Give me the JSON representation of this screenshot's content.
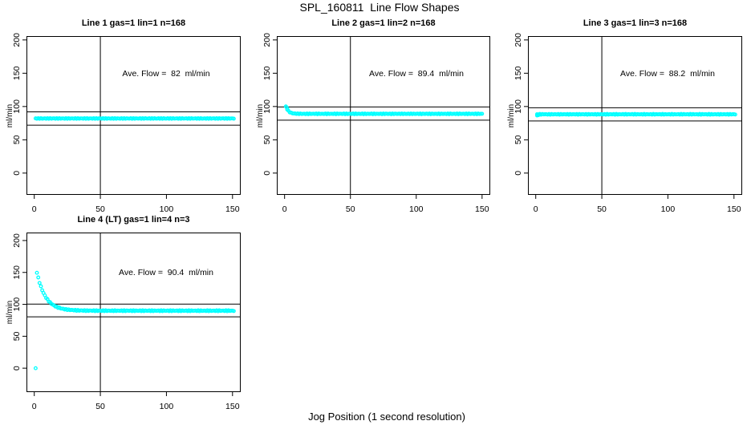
{
  "figure": {
    "title": "SPL_160811  Line Flow Shapes",
    "x_axis_label": "Jog Position (1 second resolution)",
    "y_axis_label": "ml/min",
    "background_color": "#ffffff",
    "axis_color": "#000000",
    "point_color": "#00ffff"
  },
  "chart_data": {
    "type": "scatter",
    "title": "SPL_160811  Line Flow Shapes",
    "xlabel": "Jog Position (1 second resolution)",
    "ylabel": "ml/min",
    "grid": false,
    "legend": null,
    "panels": [
      {
        "title": "Line 1 gas=1 lin=1 n=168",
        "line": 1,
        "gas": 1,
        "lin": 1,
        "n": 168,
        "ave_flow_ml_min": 82,
        "ave_flow_text": "Ave. Flow =  82  ml/min",
        "ave_label_xy": [
          100,
          150
        ],
        "xlim": [
          -5.9,
          156.2
        ],
        "ylim": [
          -32.7,
          205.8
        ],
        "xticks": [
          0,
          50,
          100,
          150
        ],
        "yticks": [
          0,
          50,
          100,
          150,
          200
        ],
        "vline_x": 50,
        "hlines_y": [
          92,
          72
        ],
        "series": {
          "shape": "flat",
          "x_start": 1,
          "x_end": 151,
          "x_step": 1,
          "flat_y": 82,
          "decay_amp": 0,
          "decay_tau": 1,
          "jitter": 0.5,
          "extra_points": []
        }
      },
      {
        "title": "Line 2 gas=1 lin=2 n=168",
        "line": 2,
        "gas": 1,
        "lin": 2,
        "n": 168,
        "ave_flow_ml_min": 89.4,
        "ave_flow_text": "Ave. Flow =  89.4  ml/min",
        "ave_label_xy": [
          100,
          150
        ],
        "xlim": [
          -5.9,
          156.2
        ],
        "ylim": [
          -32.7,
          205.8
        ],
        "xticks": [
          0,
          50,
          100,
          150
        ],
        "yticks": [
          0,
          50,
          100,
          150,
          200
        ],
        "vline_x": 50,
        "hlines_y": [
          99.4,
          79.4
        ],
        "series": {
          "shape": "exp_decay_to_flat",
          "x_start": 1,
          "x_end": 150,
          "x_step": 1,
          "flat_y": 89,
          "decay_amp": 11,
          "decay_tau": 2,
          "jitter": 0.5,
          "extra_points": [
            [
              1.5,
              99
            ],
            [
              2,
              97
            ]
          ]
        }
      },
      {
        "title": "Line 3 gas=1 lin=3 n=168",
        "line": 3,
        "gas": 1,
        "lin": 3,
        "n": 168,
        "ave_flow_ml_min": 88.2,
        "ave_flow_text": "Ave. Flow =  88.2  ml/min",
        "ave_label_xy": [
          100,
          150
        ],
        "xlim": [
          -5.9,
          156.2
        ],
        "ylim": [
          -32.7,
          205.8
        ],
        "xticks": [
          0,
          50,
          100,
          150
        ],
        "yticks": [
          0,
          50,
          100,
          150,
          200
        ],
        "vline_x": 50,
        "hlines_y": [
          98.2,
          78.2
        ],
        "series": {
          "shape": "flat",
          "x_start": 1,
          "x_end": 151,
          "x_step": 1,
          "flat_y": 88.3,
          "decay_amp": 0,
          "decay_tau": 1,
          "jitter": 0.5,
          "extra_points": [
            [
              1,
              86.5
            ],
            [
              2,
              87
            ]
          ]
        }
      },
      {
        "title": "Line 4 (LT) gas=1 lin=4 n=3",
        "line": 4,
        "line_note": "LT",
        "gas": 1,
        "lin": 4,
        "n": 3,
        "ave_flow_ml_min": 90.4,
        "ave_flow_text": "Ave. Flow =  90.4  ml/min",
        "ave_label_xy": [
          100,
          150
        ],
        "xlim": [
          -5.9,
          156.2
        ],
        "ylim": [
          -37.5,
          212.5
        ],
        "xticks": [
          0,
          50,
          100,
          150
        ],
        "yticks": [
          0,
          50,
          100,
          150,
          200
        ],
        "vline_x": 50,
        "hlines_y": [
          100.4,
          80.4
        ],
        "series": {
          "shape": "exp_decay_to_flat",
          "x_start": 2,
          "x_end": 151,
          "x_step": 1,
          "flat_y": 90,
          "decay_amp": 60,
          "decay_tau": 6.5,
          "jitter": 0.7,
          "extra_points": [
            [
              1,
              0
            ]
          ]
        }
      }
    ]
  }
}
